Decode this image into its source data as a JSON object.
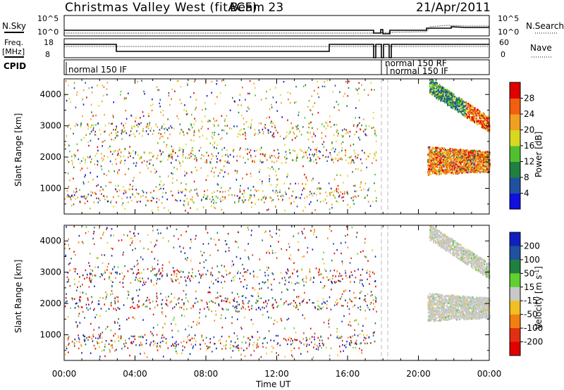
{
  "header": {
    "title": "Christmas Valley West (fitACF)",
    "beam": "Beam 23",
    "date": "21/Apr/2011"
  },
  "summary_panels": {
    "nsky_label": "N.Sky",
    "nsearch_label": "N.Search",
    "freq_label_1": "Freq.",
    "freq_label_2": "[MHz]",
    "nave_label": "Nave",
    "cpid_label": "CPID",
    "noise_ticks": [
      "10^5",
      "10^0"
    ],
    "freq_ticks": [
      "18",
      "8"
    ],
    "nave_ticks": [
      "60",
      "0"
    ],
    "cpid_labels": [
      "normal 150 IF",
      "normal 150 RF",
      "normal 150 IF"
    ]
  },
  "colorbars": {
    "power": {
      "label": "Power [dB]",
      "ticks": [
        "4",
        "8",
        "12",
        "16",
        "20",
        "24",
        "28"
      ],
      "colors": [
        "#1010e0",
        "#2050a0",
        "#208040",
        "#50c030",
        "#d8d820",
        "#f0a020",
        "#f06010",
        "#e00000"
      ]
    },
    "velocity": {
      "label": "Velocity [m s",
      "label_sup": "-1",
      "label_end": "]",
      "ticks": [
        "200",
        "100",
        "50",
        "15",
        "-15",
        "-50",
        "-100",
        "-200"
      ],
      "colors": [
        "#1020c0",
        "#2050a0",
        "#208040",
        "#60d030",
        "#c8c8c8",
        "#f0c020",
        "#f08010",
        "#e03010",
        "#e00000"
      ]
    }
  },
  "axes": {
    "ylabel": "Slant Range [km]",
    "yticks": [
      "1000",
      "2000",
      "3000",
      "4000"
    ],
    "xlabel": "Time UT",
    "xticks": [
      "00:00",
      "04:00",
      "08:00",
      "12:00",
      "16:00",
      "20:00",
      "00:00"
    ]
  },
  "chart_data": [
    {
      "type": "heatmap",
      "name_printed": "Power [dB]",
      "x_range_hours": [
        0,
        24
      ],
      "y_range_km": [
        180,
        4500
      ],
      "ylabel": "Slant Range [km]",
      "colorbar_range_db": [
        0,
        32
      ],
      "data_gap_hours": [
        17.6,
        20.5
      ],
      "regions": [
        {
          "t_start": 0.0,
          "t_end": 17.6,
          "range_min": 300,
          "range_max": 4500,
          "pattern": "sparse scattered echoes"
        },
        {
          "t_start": 20.5,
          "t_end": 24.0,
          "range_min": 1500,
          "range_max": 2300,
          "pattern": "dense band, 20-30 dB"
        },
        {
          "t_start": 20.6,
          "t_end": 24.0,
          "range_min": 2700,
          "range_max": 4500,
          "pattern": "descending band, 16-30 dB"
        }
      ]
    },
    {
      "type": "heatmap",
      "name_printed": "Velocity [m s-1]",
      "x_range_hours": [
        0,
        24
      ],
      "y_range_km": [
        180,
        4500
      ],
      "ylabel": "Slant Range [km]",
      "xlabel": "Time UT",
      "colorbar_range_ms": [
        -200,
        200
      ],
      "data_gap_hours": [
        17.6,
        20.5
      ],
      "regions": [
        {
          "t_start": 0.0,
          "t_end": 17.6,
          "range_min": 300,
          "range_max": 4500,
          "pattern": "sparse scattered echoes"
        },
        {
          "t_start": 20.5,
          "t_end": 24.0,
          "range_min": 1500,
          "range_max": 2300,
          "pattern": "dense band, near zero velocity (grey)"
        },
        {
          "t_start": 20.6,
          "t_end": 24.0,
          "range_min": 2700,
          "range_max": 4500,
          "pattern": "descending band, near zero velocity (grey)"
        }
      ]
    }
  ]
}
